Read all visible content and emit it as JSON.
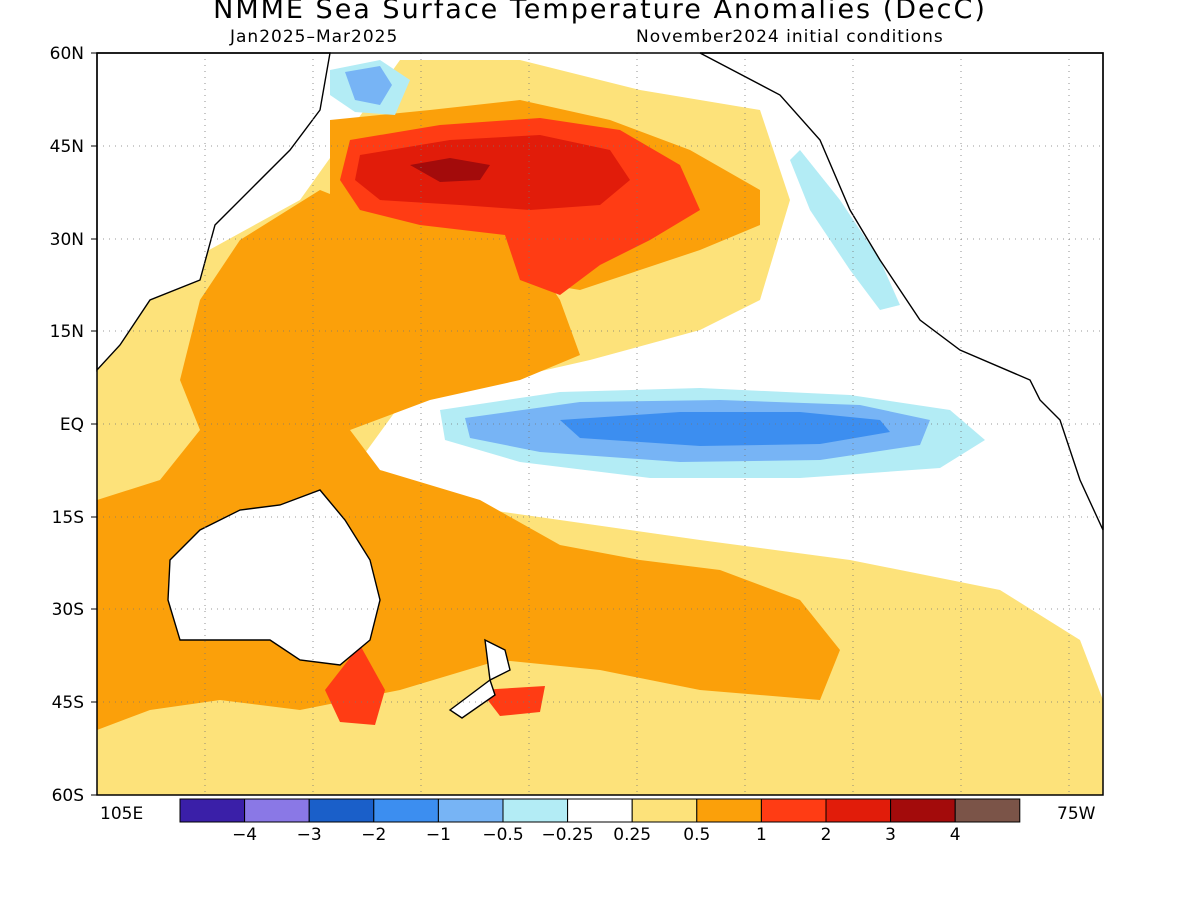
{
  "title": "NMME Sea Surface Temperature Anomalies (DecC)",
  "subtitle_left": "Jan2025–Mar2025",
  "subtitle_right": "November2024 initial conditions",
  "map": {
    "lat_labels": [
      "60N",
      "45N",
      "30N",
      "15N",
      "EQ",
      "15S",
      "30S",
      "45S",
      "60S"
    ],
    "lon_left_label": "105E",
    "lon_right_label": "75W",
    "gridlines": "dotted",
    "land_color": "#ffffff",
    "coastline_color": "#000000"
  },
  "colorbar": {
    "colors": [
      "#3a1fa8",
      "#8a78e6",
      "#1a5fc9",
      "#3c8ef0",
      "#77b4f5",
      "#b3ecf5",
      "#ffffff",
      "#fde27a",
      "#fba00a",
      "#ff3c14",
      "#e11c0a",
      "#a30b0b",
      "#7b5448"
    ],
    "labels": [
      "−4",
      "−3",
      "−2",
      "−1",
      "−0.5",
      "−0.25",
      "0.25",
      "0.5",
      "1",
      "2",
      "3",
      "4"
    ]
  }
}
